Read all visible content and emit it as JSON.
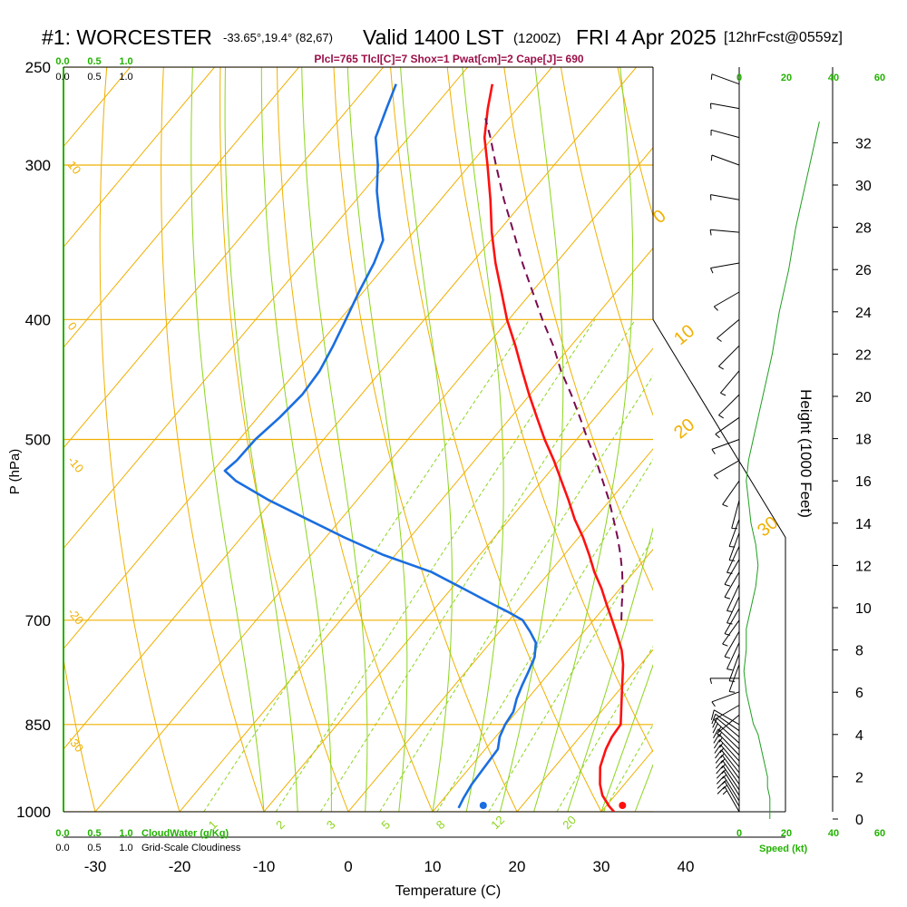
{
  "header": {
    "station": "#1: WORCESTER",
    "coords": "-33.65°,19.4° (82,67)",
    "valid": "Valid 1400 LST",
    "utc": "(1200Z)",
    "day": "FRI 4 Apr 2025",
    "forecast": "[12hrFcst@0559z]",
    "indices": "Plcl=765 Tlcl[C]=7 Shox=1 Pwat[cm]=2 Cape[J]= 690"
  },
  "colors": {
    "isobar_isotherm": "#f0b000",
    "dry_adiabat": "#f0b000",
    "moist_adiabat": "#8cd41c",
    "mixing_ratio": "#8cd41c",
    "temperature": "#ff1010",
    "dewpoint": "#1a6ee0",
    "parcel": "#7a0a50",
    "green_text": "#22b200",
    "wind_speed": "#1e9e1e"
  },
  "chart_data": [
    {
      "type": "skew-t",
      "ylabel": "P (hPa)",
      "xlabel": "Temperature (C)",
      "y2label": "Height (1000 Feet)",
      "pressure_ticks": [
        250,
        300,
        400,
        500,
        700,
        850,
        1000
      ],
      "temperature_ticks": [
        -30,
        -20,
        -10,
        0,
        10,
        20,
        30,
        40
      ],
      "height_ticks": [
        0,
        2,
        4,
        6,
        8,
        10,
        12,
        14,
        16,
        18,
        20,
        22,
        24,
        26,
        28,
        30,
        32
      ],
      "xlim": [
        -34,
        36
      ],
      "plim": [
        250,
        1000
      ],
      "dry_adiabat_labels": [
        {
          "value": "10",
          "side": "left",
          "p": 300
        },
        {
          "value": "0",
          "side": "left",
          "p": 405
        },
        {
          "value": "-10",
          "side": "left",
          "p": 520
        },
        {
          "value": "-20",
          "side": "left",
          "p": 690
        },
        {
          "value": "-30",
          "side": "left",
          "p": 875
        },
        {
          "value": "0",
          "side": "right",
          "p": 335
        },
        {
          "value": "10",
          "side": "right",
          "p": 420
        },
        {
          "value": "20",
          "side": "right",
          "p": 500
        },
        {
          "value": "30",
          "side": "right",
          "p": 600
        }
      ],
      "mixing_ratio_labels": [
        "1",
        "2",
        "3",
        "5",
        "8",
        "12",
        "20"
      ],
      "mixing_ratio_label_t": [
        -16,
        -8,
        -2,
        4.5,
        11,
        17.5,
        26
      ],
      "series": [
        {
          "kind": "temperature",
          "points": [
            [
              1000,
              31.5
            ],
            [
              990,
              30.4
            ],
            [
              970,
              28.5
            ],
            [
              950,
              27.1
            ],
            [
              920,
              25.4
            ],
            [
              890,
              24.3
            ],
            [
              870,
              23.8
            ],
            [
              850,
              23.6
            ],
            [
              840,
              23.0
            ],
            [
              800,
              20.5
            ],
            [
              760,
              17.9
            ],
            [
              740,
              16.3
            ],
            [
              720,
              14.3
            ],
            [
              700,
              12.2
            ],
            [
              680,
              10.0
            ],
            [
              660,
              7.8
            ],
            [
              640,
              5.3
            ],
            [
              620,
              3.0
            ],
            [
              600,
              0.5
            ],
            [
              580,
              -2.3
            ],
            [
              560,
              -4.9
            ],
            [
              540,
              -7.7
            ],
            [
              520,
              -10.6
            ],
            [
              500,
              -13.8
            ],
            [
              480,
              -16.9
            ],
            [
              460,
              -20.1
            ],
            [
              440,
              -23.3
            ],
            [
              420,
              -26.6
            ],
            [
              400,
              -30.2
            ],
            [
              380,
              -33.6
            ],
            [
              360,
              -37.2
            ],
            [
              340,
              -40.7
            ],
            [
              320,
              -44.1
            ],
            [
              300,
              -47.9
            ],
            [
              285,
              -51.0
            ],
            [
              270,
              -53.5
            ],
            [
              258,
              -55.4
            ]
          ]
        },
        {
          "kind": "dewpoint",
          "points": [
            [
              993,
              12.7
            ],
            [
              975,
              12.3
            ],
            [
              950,
              11.9
            ],
            [
              920,
              11.7
            ],
            [
              890,
              11.5
            ],
            [
              870,
              10.5
            ],
            [
              850,
              9.9
            ],
            [
              830,
              9.6
            ],
            [
              810,
              8.7
            ],
            [
              790,
              8.0
            ],
            [
              770,
              7.4
            ],
            [
              750,
              6.7
            ],
            [
              730,
              5.4
            ],
            [
              715,
              3.6
            ],
            [
              700,
              1.6
            ],
            [
              690,
              -0.8
            ],
            [
              680,
              -3.4
            ],
            [
              660,
              -8.6
            ],
            [
              640,
              -14.0
            ],
            [
              620,
              -21.4
            ],
            [
              600,
              -27.8
            ],
            [
              580,
              -34.0
            ],
            [
              560,
              -40.4
            ],
            [
              540,
              -46.3
            ],
            [
              530,
              -48.6
            ],
            [
              520,
              -48.2
            ],
            [
              500,
              -48.1
            ],
            [
              480,
              -47.4
            ],
            [
              460,
              -47.0
            ],
            [
              440,
              -47.3
            ],
            [
              420,
              -48.2
            ],
            [
              400,
              -49.3
            ],
            [
              380,
              -50.5
            ],
            [
              360,
              -51.6
            ],
            [
              345,
              -52.8
            ],
            [
              330,
              -55.6
            ],
            [
              315,
              -58.4
            ],
            [
              300,
              -60.9
            ],
            [
              285,
              -63.9
            ],
            [
              270,
              -65.5
            ],
            [
              258,
              -66.8
            ]
          ]
        },
        {
          "kind": "parcel",
          "points": [
            [
              700,
              13.3
            ],
            [
              680,
              11.8
            ],
            [
              660,
              10.3
            ],
            [
              640,
              8.6
            ],
            [
              620,
              6.7
            ],
            [
              600,
              4.6
            ],
            [
              580,
              2.3
            ],
            [
              560,
              -0.1
            ],
            [
              540,
              -2.8
            ],
            [
              520,
              -5.6
            ],
            [
              500,
              -8.7
            ],
            [
              480,
              -11.8
            ],
            [
              460,
              -15.1
            ],
            [
              440,
              -18.7
            ],
            [
              420,
              -22.1
            ],
            [
              400,
              -26.0
            ],
            [
              380,
              -29.9
            ],
            [
              360,
              -34.0
            ],
            [
              340,
              -38.1
            ],
            [
              320,
              -42.5
            ],
            [
              300,
              -46.9
            ],
            [
              285,
              -50.3
            ],
            [
              275,
              -52.8
            ]
          ]
        }
      ],
      "surface": {
        "temperature": 32.5,
        "dewpoint": 16
      },
      "wind_speed_profile": [
        [
          0.0,
          13
        ],
        [
          0.5,
          13
        ],
        [
          1.0,
          13
        ],
        [
          1.5,
          12
        ],
        [
          2.0,
          12
        ],
        [
          2.5,
          11
        ],
        [
          3.0,
          10
        ],
        [
          3.5,
          9
        ],
        [
          4.0,
          8
        ],
        [
          4.5,
          6
        ],
        [
          5.0,
          5
        ],
        [
          6.0,
          3
        ],
        [
          7.0,
          2
        ],
        [
          8.0,
          3
        ],
        [
          9.0,
          3
        ],
        [
          10.0,
          5
        ],
        [
          11.0,
          7
        ],
        [
          12.0,
          8
        ],
        [
          13.0,
          7
        ],
        [
          14.0,
          5
        ],
        [
          15.0,
          4
        ],
        [
          16.0,
          3
        ],
        [
          17.0,
          4
        ],
        [
          18.0,
          6
        ],
        [
          19.0,
          8
        ],
        [
          20.0,
          10
        ],
        [
          21.0,
          12
        ],
        [
          22.0,
          14
        ],
        [
          24.0,
          17
        ],
        [
          26.0,
          21
        ],
        [
          28.0,
          24
        ],
        [
          30.0,
          28
        ],
        [
          32.0,
          32
        ],
        [
          33.0,
          34
        ]
      ],
      "wind_barbs": [
        {
          "p": 1000,
          "dir": 330,
          "spd": 15
        },
        {
          "p": 990,
          "dir": 330,
          "spd": 15
        },
        {
          "p": 980,
          "dir": 328,
          "spd": 15
        },
        {
          "p": 970,
          "dir": 328,
          "spd": 15
        },
        {
          "p": 960,
          "dir": 326,
          "spd": 15
        },
        {
          "p": 950,
          "dir": 325,
          "spd": 15
        },
        {
          "p": 940,
          "dir": 324,
          "spd": 15
        },
        {
          "p": 930,
          "dir": 322,
          "spd": 15
        },
        {
          "p": 920,
          "dir": 320,
          "spd": 15
        },
        {
          "p": 910,
          "dir": 318,
          "spd": 15
        },
        {
          "p": 900,
          "dir": 316,
          "spd": 15
        },
        {
          "p": 890,
          "dir": 314,
          "spd": 15
        },
        {
          "p": 880,
          "dir": 312,
          "spd": 15
        },
        {
          "p": 870,
          "dir": 310,
          "spd": 10
        },
        {
          "p": 860,
          "dir": 305,
          "spd": 10
        },
        {
          "p": 850,
          "dir": 300,
          "spd": 10
        },
        {
          "p": 835,
          "dir": 230,
          "spd": 5
        },
        {
          "p": 820,
          "dir": 240,
          "spd": 5
        },
        {
          "p": 800,
          "dir": 250,
          "spd": 5
        },
        {
          "p": 780,
          "dir": 270,
          "spd": 5
        },
        {
          "p": 760,
          "dir": 200,
          "spd": 5
        },
        {
          "p": 745,
          "dir": 200,
          "spd": 5
        },
        {
          "p": 730,
          "dir": 205,
          "spd": 5
        },
        {
          "p": 715,
          "dir": 210,
          "spd": 5
        },
        {
          "p": 700,
          "dir": 215,
          "spd": 5
        },
        {
          "p": 685,
          "dir": 210,
          "spd": 5
        },
        {
          "p": 670,
          "dir": 205,
          "spd": 5
        },
        {
          "p": 655,
          "dir": 205,
          "spd": 5
        },
        {
          "p": 640,
          "dir": 210,
          "spd": 5
        },
        {
          "p": 625,
          "dir": 210,
          "spd": 5
        },
        {
          "p": 610,
          "dir": 205,
          "spd": 5
        },
        {
          "p": 595,
          "dir": 200,
          "spd": 5
        },
        {
          "p": 580,
          "dir": 200,
          "spd": 5
        },
        {
          "p": 560,
          "dir": 195,
          "spd": 5
        },
        {
          "p": 540,
          "dir": 215,
          "spd": 5
        },
        {
          "p": 520,
          "dir": 240,
          "spd": 5
        },
        {
          "p": 500,
          "dir": 250,
          "spd": 5
        },
        {
          "p": 480,
          "dir": 235,
          "spd": 5
        },
        {
          "p": 460,
          "dir": 225,
          "spd": 5
        },
        {
          "p": 440,
          "dir": 220,
          "spd": 5
        },
        {
          "p": 420,
          "dir": 225,
          "spd": 5
        },
        {
          "p": 400,
          "dir": 230,
          "spd": 5
        },
        {
          "p": 380,
          "dir": 240,
          "spd": 5
        },
        {
          "p": 360,
          "dir": 260,
          "spd": 5
        },
        {
          "p": 340,
          "dir": 275,
          "spd": 5
        },
        {
          "p": 320,
          "dir": 280,
          "spd": 5
        },
        {
          "p": 300,
          "dir": 290,
          "spd": 5
        },
        {
          "p": 285,
          "dir": 285,
          "spd": 5
        },
        {
          "p": 270,
          "dir": 280,
          "spd": 5
        },
        {
          "p": 258,
          "dir": 290,
          "spd": 5
        }
      ],
      "cloud_water_label": "CloudWater (g/Kg)",
      "cloud_scale_ticks": [
        "0.0",
        "0.5",
        "1.0"
      ],
      "cloudiness_label": "Grid-Scale Cloudiness",
      "wind_speed_label": "Speed (kt)",
      "wind_speed_ticks": [
        "0",
        "20",
        "40",
        "60"
      ]
    }
  ]
}
